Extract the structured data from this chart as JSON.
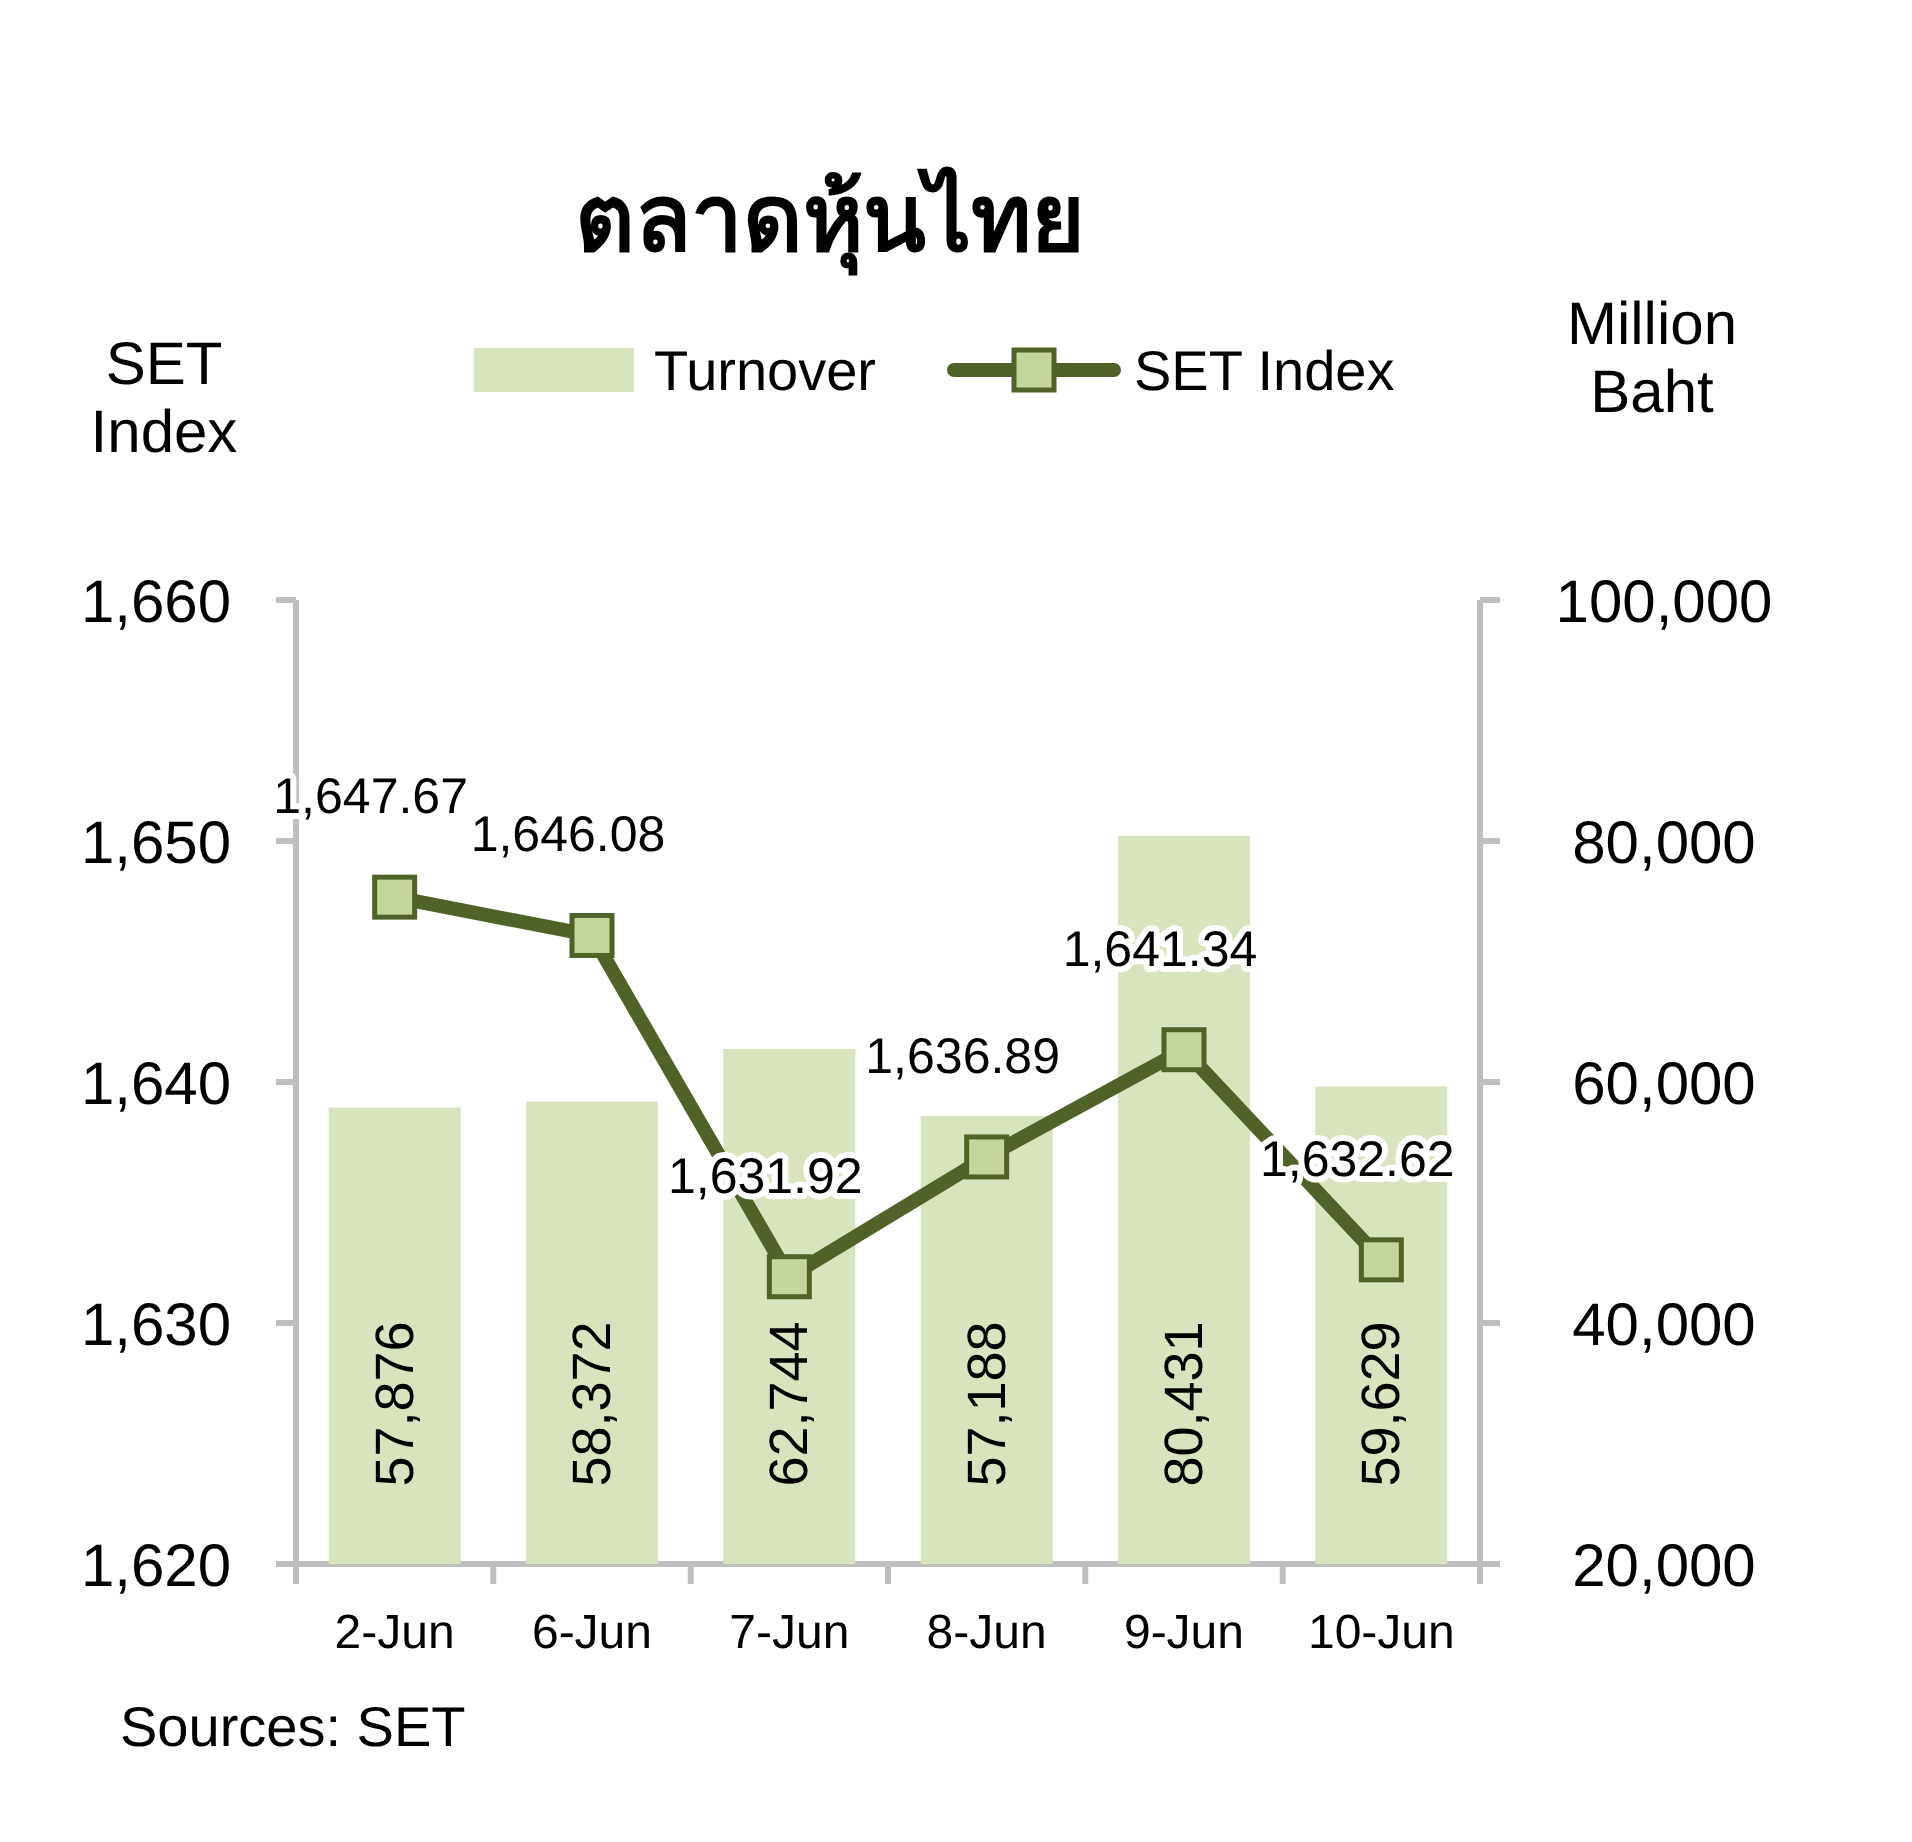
{
  "chart_data": {
    "type": "bar",
    "title": "ตลาดหุ้นไทย",
    "ylabel": "SET Index",
    "y2label": "Million Baht",
    "categories": [
      "2-Jun",
      "6-Jun",
      "7-Jun",
      "8-Jun",
      "9-Jun",
      "10-Jun"
    ],
    "series": [
      {
        "name": "Turnover",
        "axis": "y2",
        "color": "#d7e4bd",
        "values": [
          57876,
          58372,
          62744,
          57188,
          80431,
          59629
        ],
        "value_labels": [
          "57,876",
          "58,372",
          "62,744",
          "57,188",
          "80,431",
          "59,629"
        ]
      },
      {
        "name": "SET Index",
        "type": "line",
        "axis": "y",
        "color": "#4f6228",
        "marker": "square",
        "values": [
          1647.67,
          1646.08,
          1631.92,
          1636.89,
          1641.34,
          1632.62
        ],
        "value_labels": [
          "1,647.67",
          "1,646.08",
          "1,631.92",
          "1,636.89",
          "1,641.34",
          "1,632.62"
        ]
      }
    ],
    "ylim": [
      1620,
      1660
    ],
    "yticks": [
      {
        "value": 1620,
        "label": "1,620"
      },
      {
        "value": 1630,
        "label": "1,630"
      },
      {
        "value": 1640,
        "label": "1,640"
      },
      {
        "value": 1650,
        "label": "1,650"
      },
      {
        "value": 1660,
        "label": "1,660"
      }
    ],
    "y2lim": [
      20000,
      100000
    ],
    "y2ticks": [
      {
        "value": 20000,
        "label": "20,000"
      },
      {
        "value": 40000,
        "label": "40,000"
      },
      {
        "value": 60000,
        "label": "60,000"
      },
      {
        "value": 80000,
        "label": "80,000"
      },
      {
        "value": 100000,
        "label": "100,000"
      }
    ],
    "legend": "top",
    "grid": false,
    "annotations": [
      "Sources: SET"
    ]
  }
}
